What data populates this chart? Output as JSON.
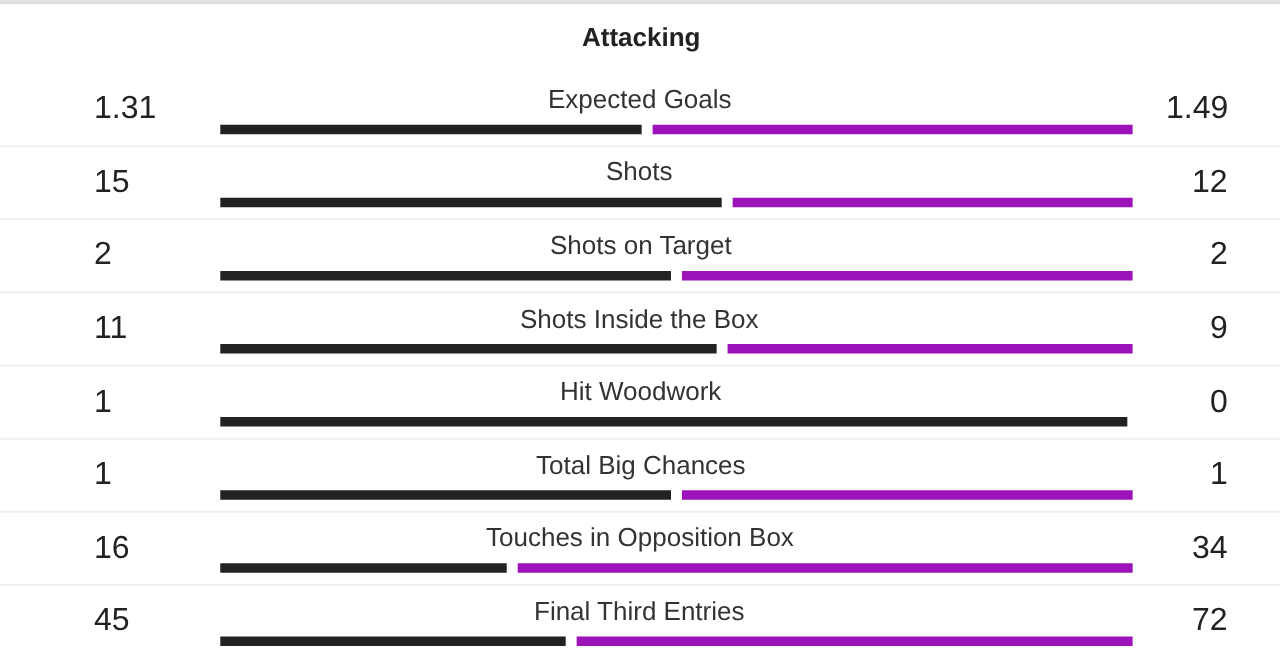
{
  "chart_data": {
    "type": "other",
    "title": "Attacking",
    "categories": [
      "Expected Goals",
      "Shots",
      "Shots on Target",
      "Shots Inside the Box",
      "Hit Woodwork",
      "Total Big Chances",
      "Touches in Opposition Box",
      "Final Third Entries"
    ],
    "series": [
      {
        "color": "#222222",
        "values": [
          1.31,
          15,
          2,
          11,
          1,
          1,
          16,
          45
        ]
      },
      {
        "color": "#9c13b9",
        "values": [
          1.49,
          12,
          2,
          9,
          0,
          1,
          34,
          72
        ]
      }
    ],
    "data_labels": true
  }
}
